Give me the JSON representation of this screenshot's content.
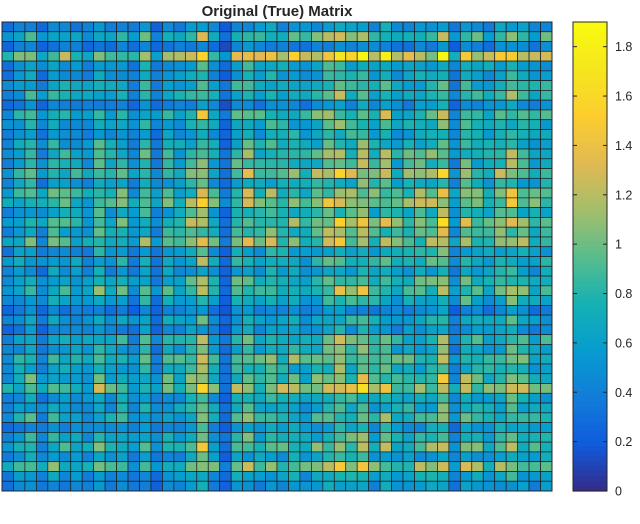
{
  "chart_data": {
    "type": "heatmap",
    "title": "Original (True) Matrix",
    "xlabel": "",
    "ylabel": "",
    "rows": 48,
    "cols": 48,
    "colormap": "parula",
    "clim": [
      0,
      1.9
    ],
    "colorbar": {
      "ticks": [
        0,
        0.2,
        0.4,
        0.6,
        0.8,
        1,
        1.2,
        1.4,
        1.6,
        1.8
      ],
      "tick_labels": [
        "0",
        "0.2",
        "0.4",
        "0.6",
        "0.8",
        "1",
        "1.2",
        "1.4",
        "1.6",
        "1.8"
      ]
    },
    "row_factor": [
      0.55,
      0.9,
      0.45,
      1.3,
      0.7,
      0.65,
      0.8,
      0.85,
      0.5,
      0.95,
      0.75,
      0.7,
      0.8,
      0.9,
      0.85,
      1.05,
      0.75,
      1.0,
      1.1,
      0.8,
      1.05,
      0.9,
      1.05,
      0.7,
      0.8,
      0.65,
      0.85,
      0.95,
      0.75,
      0.45,
      0.7,
      0.55,
      0.85,
      0.75,
      1.0,
      0.8,
      0.95,
      1.15,
      0.7,
      0.75,
      0.85,
      0.6,
      0.8,
      0.95,
      0.65,
      1.05,
      0.65,
      0.55
    ],
    "col_factor": [
      0.55,
      0.75,
      0.9,
      0.55,
      0.85,
      0.8,
      0.75,
      0.65,
      0.95,
      0.75,
      0.85,
      0.6,
      0.9,
      0.5,
      0.85,
      0.75,
      0.95,
      1.25,
      0.8,
      0.35,
      0.95,
      1.05,
      0.85,
      1.0,
      0.9,
      0.95,
      0.8,
      0.95,
      1.1,
      1.2,
      1.05,
      1.2,
      0.9,
      1.1,
      0.85,
      0.9,
      0.95,
      1.0,
      1.25,
      0.55,
      1.05,
      0.9,
      0.85,
      1.0,
      1.15,
      0.95,
      0.8,
      0.9
    ],
    "seed": 7
  }
}
